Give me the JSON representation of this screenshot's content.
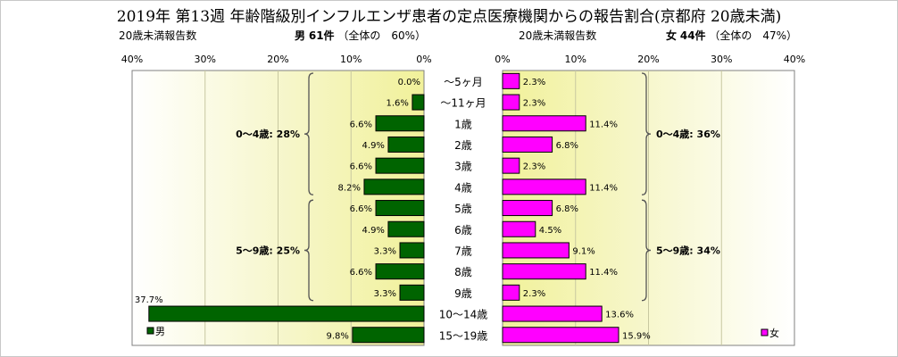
{
  "title": "2019年 第13週 年齢階級別インフルエンザ患者の定点医療機関からの報告割合(京都府 20歳未満)",
  "left_header": {
    "label": "20歳未満報告数",
    "sex": "男",
    "count_text": "61件",
    "share_text": "（全体の　60%）"
  },
  "right_header": {
    "label": "20歳未満報告数",
    "sex": "女",
    "count_text": "44件",
    "share_text": "（全体の　47%）"
  },
  "chart_data": {
    "type": "bar",
    "orientation": "horizontal-butterfly",
    "categories": [
      "〜5ヶ月",
      "〜11ヶ月",
      "1歳",
      "2歳",
      "3歳",
      "4歳",
      "5歳",
      "6歳",
      "7歳",
      "8歳",
      "9歳",
      "10〜14歳",
      "15〜19歳"
    ],
    "series": [
      {
        "name": "男",
        "side": "left",
        "color": "#006400",
        "values": [
          0.0,
          1.6,
          6.6,
          4.9,
          6.6,
          8.2,
          6.6,
          4.9,
          3.3,
          6.6,
          3.3,
          37.7,
          9.8
        ],
        "labels": [
          "0.0%",
          "1.6%",
          "6.6%",
          "4.9%",
          "6.6%",
          "8.2%",
          "6.6%",
          "4.9%",
          "3.3%",
          "6.6%",
          "3.3%",
          "37.7%",
          "9.8%"
        ]
      },
      {
        "name": "女",
        "side": "right",
        "color": "#ff00ff",
        "values": [
          2.3,
          2.3,
          11.4,
          6.8,
          2.3,
          11.4,
          6.8,
          4.5,
          9.1,
          11.4,
          2.3,
          13.6,
          15.9
        ],
        "labels": [
          "2.3%",
          "2.3%",
          "11.4%",
          "6.8%",
          "2.3%",
          "11.4%",
          "6.8%",
          "4.5%",
          "9.1%",
          "11.4%",
          "2.3%",
          "13.6%",
          "15.9%"
        ]
      }
    ],
    "xlim": [
      0,
      40
    ],
    "left_ticks": [
      "40%",
      "30%",
      "20%",
      "10%",
      "0%"
    ],
    "right_ticks": [
      "0%",
      "10%",
      "20%",
      "30%",
      "40%"
    ],
    "grid": true,
    "groups": {
      "left": [
        {
          "label": "0〜4歳: 28%",
          "from": 0,
          "to": 5
        },
        {
          "label": "5〜9歳: 25%",
          "from": 6,
          "to": 10
        }
      ],
      "right": [
        {
          "label": "0〜4歳: 36%",
          "from": 0,
          "to": 5
        },
        {
          "label": "5〜9歳: 34%",
          "from": 6,
          "to": 10
        }
      ]
    },
    "legend": {
      "left": "男",
      "right": "女",
      "placement": "bottom"
    }
  }
}
